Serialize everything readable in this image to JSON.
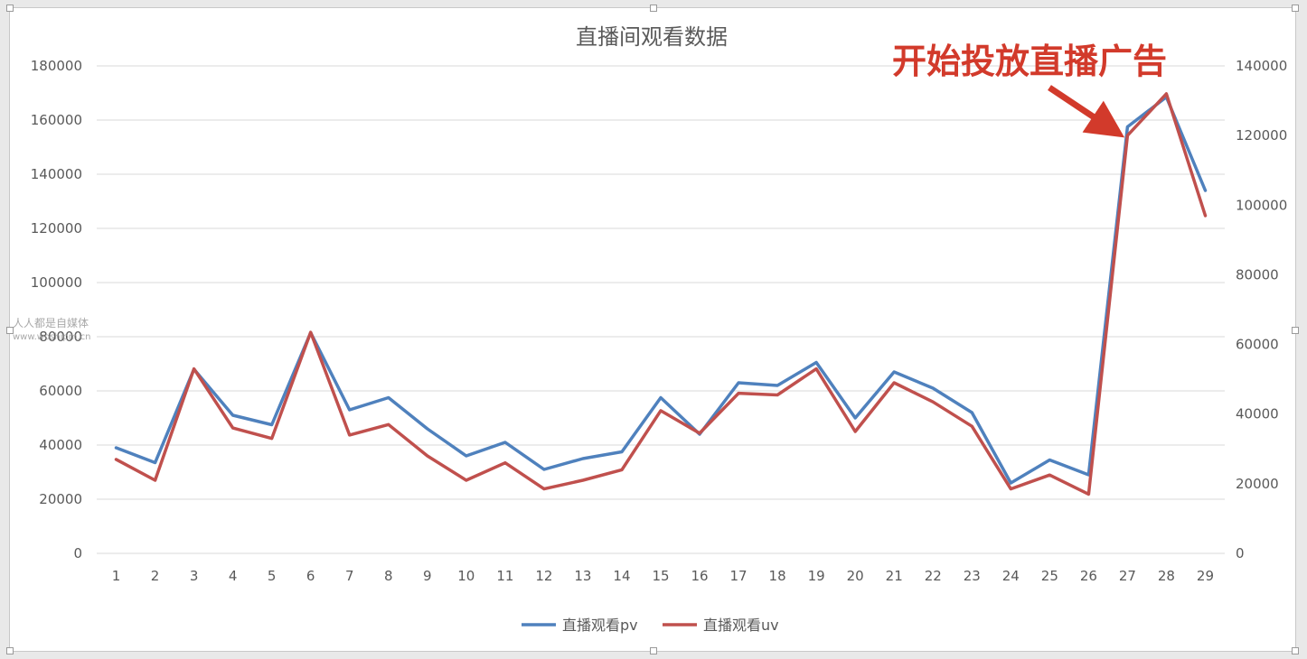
{
  "chart_data": {
    "type": "line",
    "title": "直播间观看数据",
    "annotation": "开始投放直播广告",
    "categories": [
      "1",
      "2",
      "3",
      "4",
      "5",
      "6",
      "7",
      "8",
      "9",
      "10",
      "11",
      "12",
      "13",
      "14",
      "15",
      "16",
      "17",
      "18",
      "19",
      "20",
      "21",
      "22",
      "23",
      "24",
      "25",
      "26",
      "27",
      "28",
      "29"
    ],
    "series": [
      {
        "name": "直播观看pv",
        "axis": "left",
        "color": "#4f81bd",
        "values": [
          39000,
          33500,
          68000,
          51000,
          47500,
          81500,
          53000,
          57500,
          46000,
          36000,
          41000,
          31000,
          35000,
          37500,
          57500,
          44000,
          63000,
          62000,
          70500,
          50000,
          67000,
          61000,
          52000,
          26000,
          34500,
          29000,
          157500,
          168500,
          134000
        ]
      },
      {
        "name": "直播观看uv",
        "axis": "right",
        "color": "#c0504d",
        "values": [
          27000,
          21000,
          53000,
          36000,
          33000,
          63500,
          34000,
          37000,
          28000,
          21000,
          26000,
          18500,
          21000,
          24000,
          41000,
          34500,
          46000,
          45500,
          53000,
          35000,
          49000,
          43500,
          36500,
          18500,
          22500,
          17000,
          120000,
          132000,
          97000
        ]
      }
    ],
    "y_left": {
      "min": 0,
      "max": 180000,
      "step": 20000,
      "ticks": [
        "0",
        "20000",
        "40000",
        "60000",
        "80000",
        "100000",
        "120000",
        "140000",
        "160000",
        "180000"
      ]
    },
    "y_right": {
      "min": 0,
      "max": 140000,
      "step": 20000,
      "ticks": [
        "0",
        "20000",
        "40000",
        "60000",
        "80000",
        "100000",
        "120000",
        "140000"
      ]
    },
    "grid": true,
    "legend": "bottom-center"
  },
  "watermark": {
    "line1": "人人都是自媒体",
    "line2": "www.woshipm.cn"
  },
  "colors": {
    "annotation": "#d23a2b",
    "axis_text": "#595959",
    "gridline": "#d9d9d9"
  }
}
